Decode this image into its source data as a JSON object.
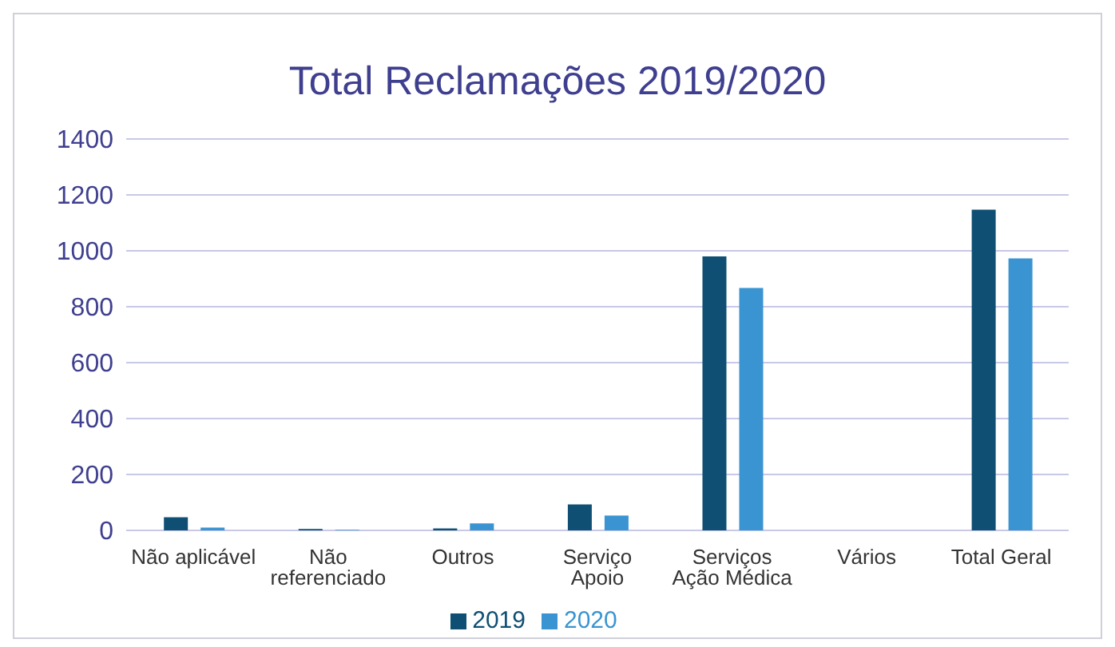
{
  "chart_data": {
    "type": "bar",
    "title": "Total Reclamações 2019/2020",
    "categories": [
      "Não aplicável",
      "Não referenciado",
      "Outros",
      "Serviço Apoio",
      "Serviços Ação Médica",
      "Vários",
      "Total Geral"
    ],
    "series": [
      {
        "name": "2019",
        "color": "#0e4f73",
        "values": [
          47,
          5,
          7,
          93,
          980,
          0,
          1147
        ]
      },
      {
        "name": "2020",
        "color": "#3a94d1",
        "values": [
          10,
          2,
          25,
          53,
          867,
          0,
          973
        ]
      }
    ],
    "ylim": [
      0,
      1400
    ],
    "yticks": [
      0,
      200,
      400,
      600,
      800,
      1000,
      1200,
      1400
    ],
    "grid": "y",
    "legend": "bottom"
  }
}
